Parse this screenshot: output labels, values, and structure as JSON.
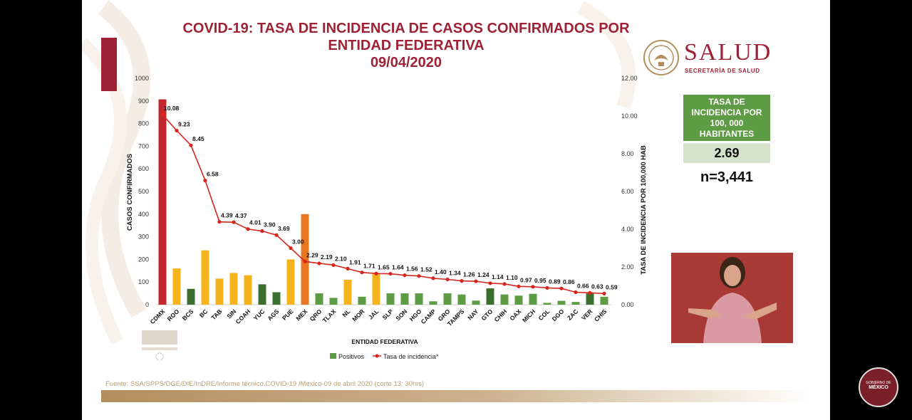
{
  "title_lines": [
    "COVID-19: TASA DE INCIDENCIA DE CASOS CONFIRMADOS POR",
    "ENTIDAD FEDERATIVA",
    "09/04/2020"
  ],
  "logo": {
    "word": "SALUD",
    "subtitle": "SECRETARÍA DE SALUD",
    "icon": "national-seal-icon"
  },
  "summary": {
    "label": "TASA DE INCIDENCIA POR 100, 000 HABITANTES",
    "value": "2.69",
    "n": "n=3,441"
  },
  "source": "Fuente: SSA/SPPS/DGE/DIE/InDRE/Informe técnico.COVID-19 /Mexico-09 de abril 2020 (corte 13: 30hrs)",
  "badge": {
    "line1": "GOBIERNO DE",
    "line2": "MÉXICO"
  },
  "colors": {
    "brand": "#9d2235",
    "green": "#5e9b45",
    "dark_green": "#3a6e2f",
    "yellow": "#f6b21a",
    "orange": "#e87722",
    "red_bar": "#c1272d",
    "line": "#d7261e"
  },
  "chart_data": {
    "type": "bar",
    "xlabel": "ENTIDAD FEDERATIVA",
    "ylabel": "CASOS CONFIRMADOS",
    "y2label": "TASA DE INCIDENCIA POR 100,000 HAB",
    "ylim": [
      0,
      1000
    ],
    "y2lim": [
      0,
      12
    ],
    "yticks": [
      "0",
      "100",
      "200",
      "300",
      "400",
      "500",
      "600",
      "700",
      "800",
      "900",
      "1000"
    ],
    "y2ticks": [
      "0.00",
      "2.00",
      "4.00",
      "6.00",
      "8.00",
      "10.00",
      "12.00"
    ],
    "legend": {
      "placement": "bottom",
      "bars": "Positivos",
      "line": "Tasa de incidencia*"
    },
    "categories": [
      "CDMX",
      "ROO",
      "BCS",
      "BC",
      "TAB",
      "SIN",
      "COAH",
      "YUC",
      "AGS",
      "PUE",
      "MEX",
      "QRO",
      "TLAX",
      "NL",
      "MOR",
      "JAL",
      "SLP",
      "SON",
      "HGO",
      "CAMP",
      "GRO",
      "TAMPS",
      "NAY",
      "GTO",
      "CHIH",
      "OAX",
      "MICH",
      "COL",
      "DGO",
      "ZAC",
      "VER",
      "CHIS"
    ],
    "series": [
      {
        "name": "Positivos",
        "kind": "bar",
        "values": [
          907,
          160,
          70,
          240,
          115,
          140,
          130,
          90,
          55,
          200,
          400,
          50,
          30,
          110,
          35,
          135,
          50,
          50,
          50,
          15,
          50,
          45,
          18,
          72,
          45,
          40,
          48,
          8,
          17,
          12,
          50,
          35
        ]
      },
      {
        "name": "Tasa de incidencia*",
        "kind": "line",
        "values": [
          10.08,
          9.23,
          8.45,
          6.58,
          4.39,
          4.37,
          4.01,
          3.9,
          3.69,
          3.0,
          2.29,
          2.19,
          2.1,
          1.91,
          1.71,
          1.65,
          1.64,
          1.56,
          1.52,
          1.4,
          1.34,
          1.26,
          1.24,
          1.14,
          1.1,
          0.97,
          0.95,
          0.89,
          0.86,
          0.66,
          0.63,
          0.59
        ]
      }
    ],
    "point_labels": [
      "10.08",
      "9.23",
      "8.45",
      "6.58",
      "4.39",
      "4.37",
      "4.01",
      "3.90",
      "3.69",
      "3.00",
      "2.29",
      "2.19",
      "2.10",
      "1.91",
      "1.71",
      "1.65",
      "1.64",
      "1.56",
      "1.52",
      "1.40",
      "1.34",
      "1.26",
      "1.24",
      "1.14",
      "1.10",
      "0.97",
      "0.95",
      "0.89",
      "0.86",
      "0.66",
      "0.63",
      "0.59"
    ],
    "bar_colors": [
      "#c1272d",
      "#f6b21a",
      "#3a6e2f",
      "#f6b21a",
      "#f6b21a",
      "#f6b21a",
      "#f6b21a",
      "#3a6e2f",
      "#3a6e2f",
      "#f6b21a",
      "#e87722",
      "#5e9b45",
      "#5e9b45",
      "#f6b21a",
      "#5e9b45",
      "#f6b21a",
      "#5e9b45",
      "#5e9b45",
      "#5e9b45",
      "#5e9b45",
      "#5e9b45",
      "#5e9b45",
      "#5e9b45",
      "#3a6e2f",
      "#5e9b45",
      "#5e9b45",
      "#5e9b45",
      "#5e9b45",
      "#5e9b45",
      "#5e9b45",
      "#3a6e2f",
      "#5e9b45"
    ]
  }
}
